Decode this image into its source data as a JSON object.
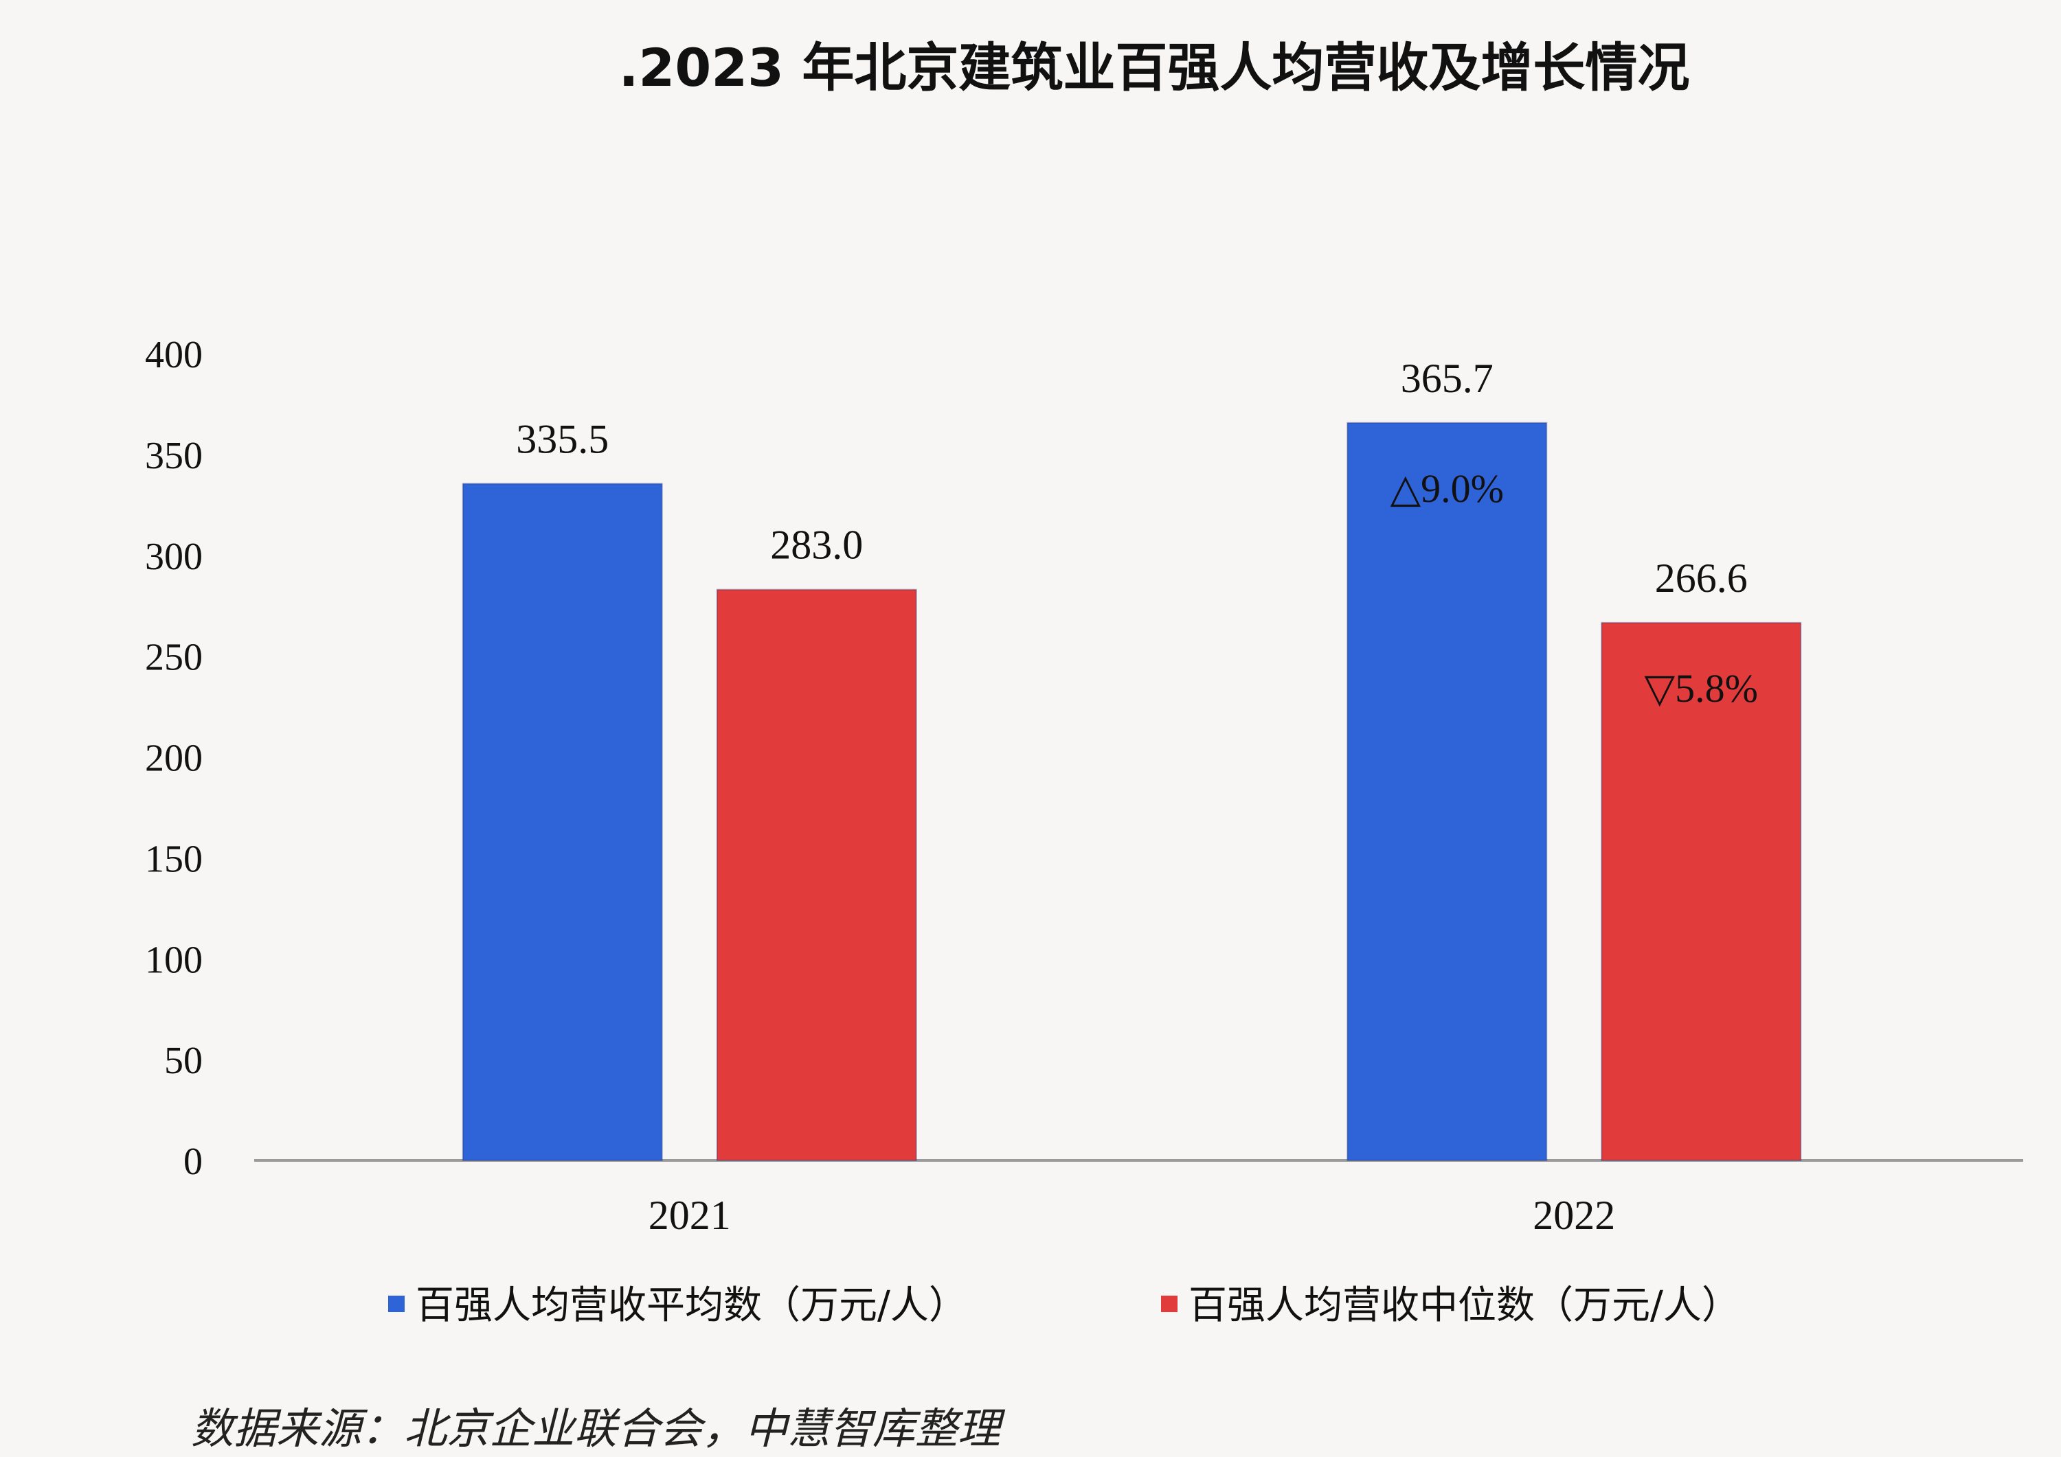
{
  "chart_data": {
    "type": "bar",
    "title": ".2023 年北京建筑业百强人均营收及增长情况",
    "categories": [
      "2021",
      "2022"
    ],
    "series": [
      {
        "name": "百强人均营收平均数（万元/人）",
        "color": "#2f63d8",
        "values": [
          335.5,
          365.7
        ],
        "labels": [
          "335.5",
          "365.7"
        ],
        "annotations": [
          "",
          "△9.0%"
        ]
      },
      {
        "name": "百强人均营收中位数（万元/人）",
        "color": "#e23b3b",
        "values": [
          283.0,
          266.6
        ],
        "labels": [
          "283.0",
          "266.6"
        ],
        "annotations": [
          "",
          "▽5.8%"
        ]
      }
    ],
    "ylim": [
      0,
      400
    ],
    "yticks": [
      "0",
      "50",
      "100",
      "150",
      "200",
      "250",
      "300",
      "350",
      "400"
    ],
    "grid": false,
    "legend_position": "bottom"
  },
  "source": "数据来源：北京企业联合会，中慧智库整理"
}
